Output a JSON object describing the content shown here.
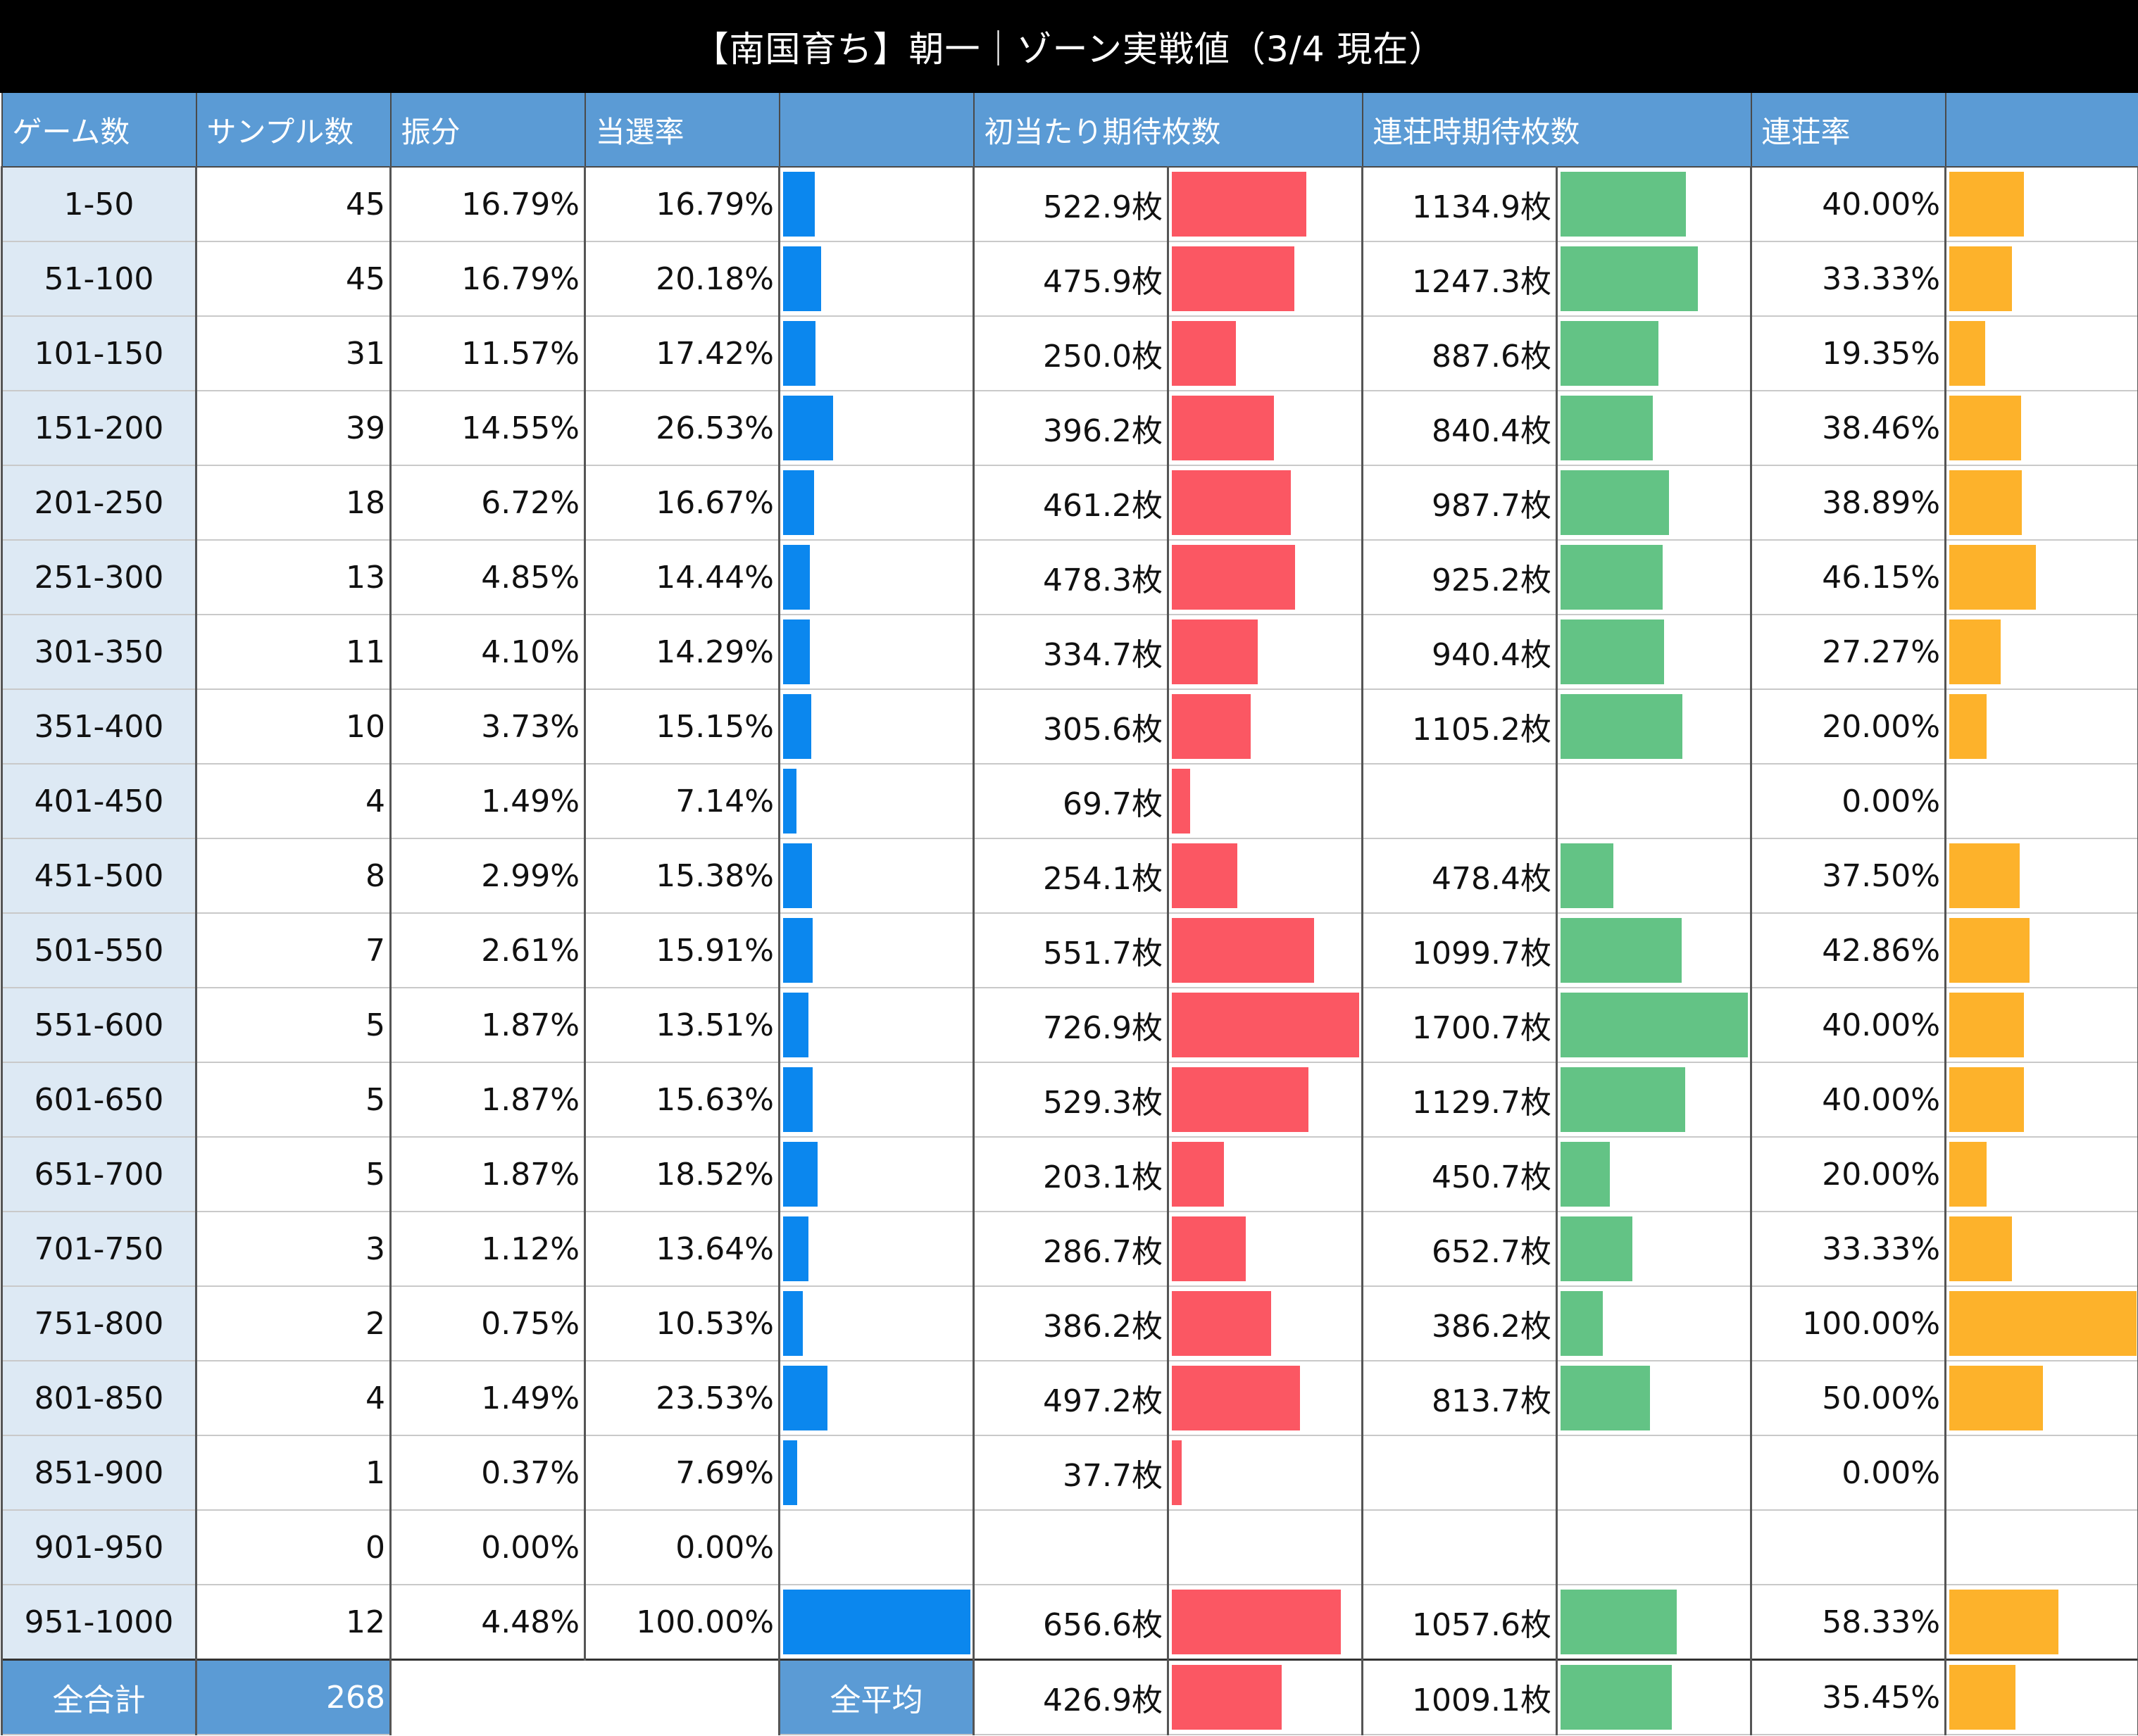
{
  "title": "【南国育ち】朝一｜ゾーン実戦値（3/4 現在）",
  "headers": {
    "game": "ゲーム数",
    "sample": "サンプル数",
    "furi": "振分",
    "rate": "当選率",
    "rate_bar": "",
    "first": "初当たり期待枚数",
    "renchan": "連荘時期待枚数",
    "rr": "連荘率",
    "rr_bar": ""
  },
  "colors": {
    "header_bg": "#5b9bd5",
    "game_bg": "#dde9f4",
    "rate_bar": "#0b87ee",
    "first_bar": "#fb5763",
    "renchan_bar": "#63c385",
    "rr_bar": "#fdb22b"
  },
  "rows": [
    {
      "game": "1-50",
      "sample": "45",
      "furi": "16.79%",
      "rate": "16.79%",
      "first": "522.9枚",
      "renchan": "1134.9枚",
      "rr": "40.00%",
      "rate_v": 16.79,
      "first_v": 522.9,
      "renchan_v": 1134.9,
      "rr_v": 40.0
    },
    {
      "game": "51-100",
      "sample": "45",
      "furi": "16.79%",
      "rate": "20.18%",
      "first": "475.9枚",
      "renchan": "1247.3枚",
      "rr": "33.33%",
      "rate_v": 20.18,
      "first_v": 475.9,
      "renchan_v": 1247.3,
      "rr_v": 33.33
    },
    {
      "game": "101-150",
      "sample": "31",
      "furi": "11.57%",
      "rate": "17.42%",
      "first": "250.0枚",
      "renchan": "887.6枚",
      "rr": "19.35%",
      "rate_v": 17.42,
      "first_v": 250.0,
      "renchan_v": 887.6,
      "rr_v": 19.35
    },
    {
      "game": "151-200",
      "sample": "39",
      "furi": "14.55%",
      "rate": "26.53%",
      "first": "396.2枚",
      "renchan": "840.4枚",
      "rr": "38.46%",
      "rate_v": 26.53,
      "first_v": 396.2,
      "renchan_v": 840.4,
      "rr_v": 38.46
    },
    {
      "game": "201-250",
      "sample": "18",
      "furi": "6.72%",
      "rate": "16.67%",
      "first": "461.2枚",
      "renchan": "987.7枚",
      "rr": "38.89%",
      "rate_v": 16.67,
      "first_v": 461.2,
      "renchan_v": 987.7,
      "rr_v": 38.89
    },
    {
      "game": "251-300",
      "sample": "13",
      "furi": "4.85%",
      "rate": "14.44%",
      "first": "478.3枚",
      "renchan": "925.2枚",
      "rr": "46.15%",
      "rate_v": 14.44,
      "first_v": 478.3,
      "renchan_v": 925.2,
      "rr_v": 46.15
    },
    {
      "game": "301-350",
      "sample": "11",
      "furi": "4.10%",
      "rate": "14.29%",
      "first": "334.7枚",
      "renchan": "940.4枚",
      "rr": "27.27%",
      "rate_v": 14.29,
      "first_v": 334.7,
      "renchan_v": 940.4,
      "rr_v": 27.27
    },
    {
      "game": "351-400",
      "sample": "10",
      "furi": "3.73%",
      "rate": "15.15%",
      "first": "305.6枚",
      "renchan": "1105.2枚",
      "rr": "20.00%",
      "rate_v": 15.15,
      "first_v": 305.6,
      "renchan_v": 1105.2,
      "rr_v": 20.0
    },
    {
      "game": "401-450",
      "sample": "4",
      "furi": "1.49%",
      "rate": "7.14%",
      "first": "69.7枚",
      "renchan": "",
      "rr": "0.00%",
      "rate_v": 7.14,
      "first_v": 69.7,
      "renchan_v": 0,
      "rr_v": 0
    },
    {
      "game": "451-500",
      "sample": "8",
      "furi": "2.99%",
      "rate": "15.38%",
      "first": "254.1枚",
      "renchan": "478.4枚",
      "rr": "37.50%",
      "rate_v": 15.38,
      "first_v": 254.1,
      "renchan_v": 478.4,
      "rr_v": 37.5
    },
    {
      "game": "501-550",
      "sample": "7",
      "furi": "2.61%",
      "rate": "15.91%",
      "first": "551.7枚",
      "renchan": "1099.7枚",
      "rr": "42.86%",
      "rate_v": 15.91,
      "first_v": 551.7,
      "renchan_v": 1099.7,
      "rr_v": 42.86
    },
    {
      "game": "551-600",
      "sample": "5",
      "furi": "1.87%",
      "rate": "13.51%",
      "first": "726.9枚",
      "renchan": "1700.7枚",
      "rr": "40.00%",
      "rate_v": 13.51,
      "first_v": 726.9,
      "renchan_v": 1700.7,
      "rr_v": 40.0
    },
    {
      "game": "601-650",
      "sample": "5",
      "furi": "1.87%",
      "rate": "15.63%",
      "first": "529.3枚",
      "renchan": "1129.7枚",
      "rr": "40.00%",
      "rate_v": 15.63,
      "first_v": 529.3,
      "renchan_v": 1129.7,
      "rr_v": 40.0
    },
    {
      "game": "651-700",
      "sample": "5",
      "furi": "1.87%",
      "rate": "18.52%",
      "first": "203.1枚",
      "renchan": "450.7枚",
      "rr": "20.00%",
      "rate_v": 18.52,
      "first_v": 203.1,
      "renchan_v": 450.7,
      "rr_v": 20.0
    },
    {
      "game": "701-750",
      "sample": "3",
      "furi": "1.12%",
      "rate": "13.64%",
      "first": "286.7枚",
      "renchan": "652.7枚",
      "rr": "33.33%",
      "rate_v": 13.64,
      "first_v": 286.7,
      "renchan_v": 652.7,
      "rr_v": 33.33
    },
    {
      "game": "751-800",
      "sample": "2",
      "furi": "0.75%",
      "rate": "10.53%",
      "first": "386.2枚",
      "renchan": "386.2枚",
      "rr": "100.00%",
      "rate_v": 10.53,
      "first_v": 386.2,
      "renchan_v": 386.2,
      "rr_v": 100.0
    },
    {
      "game": "801-850",
      "sample": "4",
      "furi": "1.49%",
      "rate": "23.53%",
      "first": "497.2枚",
      "renchan": "813.7枚",
      "rr": "50.00%",
      "rate_v": 23.53,
      "first_v": 497.2,
      "renchan_v": 813.7,
      "rr_v": 50.0
    },
    {
      "game": "851-900",
      "sample": "1",
      "furi": "0.37%",
      "rate": "7.69%",
      "first": "37.7枚",
      "renchan": "",
      "rr": "0.00%",
      "rate_v": 7.69,
      "first_v": 37.7,
      "renchan_v": 0,
      "rr_v": 0
    },
    {
      "game": "901-950",
      "sample": "0",
      "furi": "0.00%",
      "rate": "0.00%",
      "first": "",
      "renchan": "",
      "rr": "",
      "rate_v": 0,
      "first_v": 0,
      "renchan_v": 0,
      "rr_v": 0
    },
    {
      "game": "951-1000",
      "sample": "12",
      "furi": "4.48%",
      "rate": "100.00%",
      "first": "656.6枚",
      "renchan": "1057.6枚",
      "rr": "58.33%",
      "rate_v": 100.0,
      "first_v": 656.6,
      "renchan_v": 1057.6,
      "rr_v": 58.33
    }
  ],
  "totals": {
    "total_label": "全合計",
    "total_sample": "268",
    "avg_label": "全平均",
    "first": "426.9枚",
    "renchan": "1009.1枚",
    "rr": "35.45%",
    "first_v": 426.9,
    "renchan_v": 1009.1,
    "rr_v": 35.45
  },
  "scale": {
    "rate_max": 100,
    "first_max": 726.9,
    "renchan_max": 1700.7,
    "rr_max": 100
  }
}
